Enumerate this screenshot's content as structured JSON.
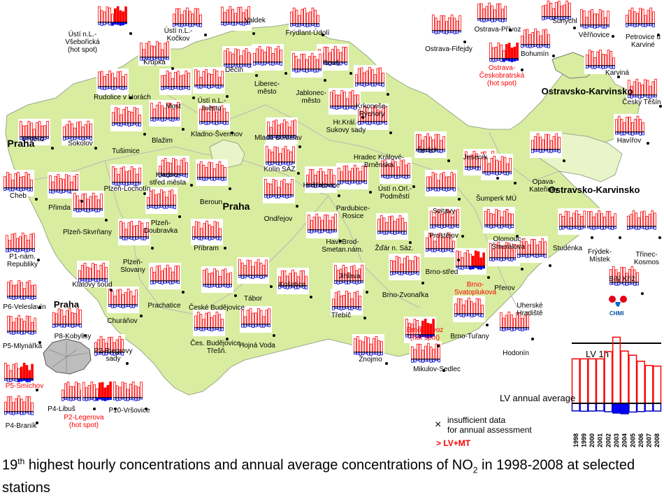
{
  "caption": {
    "part1": "19",
    "sup": "th",
    "part2": " highest hourly concentrations and annual average concentrations of NO",
    "sub": "2",
    "part3": " in 1998-2008 at selected stations"
  },
  "regions": [
    {
      "label": "Praha"
    },
    {
      "label": "Praha"
    },
    {
      "label": "Praha"
    },
    {
      "label": "Ostravsko-Karvinsko"
    },
    {
      "label": "Ostravsko-Karvinsko"
    }
  ],
  "stations": [
    {
      "label": "Ústí n.L.-\nVšebořická\n(hot spot)"
    },
    {
      "label": "Ústí n.L.-\nKočkov"
    },
    {
      "label": "Valdek"
    },
    {
      "label": "Frýdlant-Údolí"
    },
    {
      "label": "Krupka"
    },
    {
      "label": "Děčín"
    },
    {
      "label": "Souš"
    },
    {
      "label": "Rudolice v Horách"
    },
    {
      "label": "Most"
    },
    {
      "label": "Ústí n.L.-\nměsto"
    },
    {
      "label": "Liberec-\nměsto"
    },
    {
      "label": "Jablonec-\nměsto"
    },
    {
      "label": "Krkonoše-\nRýchory"
    },
    {
      "label": "Přebuz"
    },
    {
      "label": "Tušimice"
    },
    {
      "label": "Blažim"
    },
    {
      "label": "Kladno-Švermov"
    },
    {
      "label": "Mladá Boleslav"
    },
    {
      "label": "Hr.Král.-\nSukovy sady"
    },
    {
      "label": "Hradec Králové-\nBrněnská"
    },
    {
      "label": "Šerlich"
    },
    {
      "label": "Sokolov"
    },
    {
      "label": "Plzeň-Lochotín"
    },
    {
      "label": "Kladno-\nstřed města"
    },
    {
      "label": "Kolín SAZ"
    },
    {
      "label": "Hošťalovice"
    },
    {
      "label": "Jeseník"
    },
    {
      "label": "Cheb"
    },
    {
      "label": "Přimda"
    },
    {
      "label": "Beroun"
    },
    {
      "label": "Pardubice-\nRosice"
    },
    {
      "label": "Ústí n.Orl.-\nPodměstí"
    },
    {
      "label": "Svitavy"
    },
    {
      "label": "Šumperk MÚ"
    },
    {
      "label": "Opava-\nKateřinky"
    },
    {
      "label": "Plzeň-Skvrňany"
    },
    {
      "label": "Plzeň-\nDoubravka"
    },
    {
      "label": "Ondřejov"
    },
    {
      "label": "Příbram"
    },
    {
      "label": "Havl.Brod-\nSmetan.nám."
    },
    {
      "label": "Žďár n. Sáz."
    },
    {
      "label": "Prostějov"
    },
    {
      "label": "Olomouc-\nŠmeralova"
    },
    {
      "label": "Studénka"
    },
    {
      "label": "Frýdek-\nMístek"
    },
    {
      "label": "Třinec-\nKosmos"
    },
    {
      "label": "Plzeň-\nSlovany"
    },
    {
      "label": "Klatovy soud"
    },
    {
      "label": "Tábor"
    },
    {
      "label": "Košetice"
    },
    {
      "label": "Jihlava"
    },
    {
      "label": "Brno-střed"
    },
    {
      "label": "Přerov"
    },
    {
      "label": "Bílý Kříž"
    },
    {
      "label": "Prachatice"
    },
    {
      "label": "České Budějovice"
    },
    {
      "label": "Brno-Zvonařka"
    },
    {
      "label": "Brno-\nSvatoplukova"
    },
    {
      "label": "Uherské\nHradiště"
    },
    {
      "label": "Churáňov"
    },
    {
      "label": "Třebíč"
    },
    {
      "label": "Brno - Úvoz\n(hot spot)"
    },
    {
      "label": "Brno-Tuřany"
    },
    {
      "label": "Hodonín"
    },
    {
      "label": "Čes. Budějovice-\nTřešň."
    },
    {
      "label": "Hojná Voda"
    },
    {
      "label": "Znojmo"
    },
    {
      "label": "Mikulov-Sedlec"
    },
    {
      "label": "Ostrava-Přívoz"
    },
    {
      "label": "Šunychl"
    },
    {
      "label": "Věřňovice"
    },
    {
      "label": "Petrovice u\nKarviné"
    },
    {
      "label": "Ostrava-Fifejdy"
    },
    {
      "label": "Bohumín"
    },
    {
      "label": "Ostrava-\nČeskobratrská\n(hot spot)"
    },
    {
      "label": "Karviná"
    },
    {
      "label": "Český Těšín"
    },
    {
      "label": "Havířov"
    },
    {
      "label": "P1-nám.\nRepubliky"
    },
    {
      "label": "P6-Veleslavín"
    },
    {
      "label": "P8-Kobylisy"
    },
    {
      "label": "P5-Mlynářka"
    },
    {
      "label": "P2-Riegrovy\nsady"
    },
    {
      "label": "P5-Smíchov"
    },
    {
      "label": "P4-Libuš"
    },
    {
      "label": "P10-Vršovice"
    },
    {
      "label": "P4-Braník"
    },
    {
      "label": "P2-Legerova\n(hot spot)"
    }
  ],
  "legend": {
    "lv_1h": "LV 1h",
    "lv_annual": "LV annual average",
    "years": [
      "1998",
      "1999",
      "2000",
      "2001",
      "2002",
      "2003",
      "2004",
      "2005",
      "2006",
      "2007",
      "2008"
    ],
    "insufficient_line1": "insufficient data",
    "insufficient_line2": "for annual assessment",
    "exceed": "> LV+MT",
    "logo": "CHMI",
    "colors": {
      "hourly": "#ff0000",
      "annual": "#0000cc",
      "exceed": "#ff0000",
      "fill_exceed": "#0000ff"
    }
  },
  "chart_data": {
    "type": "bar",
    "title": "",
    "categories": [
      "1998",
      "1999",
      "2000",
      "2001",
      "2002",
      "2003",
      "2004",
      "2005",
      "2006",
      "2007",
      "2008"
    ],
    "series": [
      {
        "name": "",
        "values": [
          0.74,
          0.74,
          0.74,
          0.74,
          0.86,
          1.1,
          0.87,
          0.8,
          0.7,
          0.63,
          0.62
        ]
      },
      {
        "name": "",
        "values": [
          0.45,
          0.47,
          0.46,
          0.45,
          0.5,
          0.58,
          0.62,
          0.52,
          0.49,
          0.46,
          0.46
        ]
      }
    ],
    "reference_lines": [
      "LV 1h",
      "LV annual average"
    ]
  }
}
